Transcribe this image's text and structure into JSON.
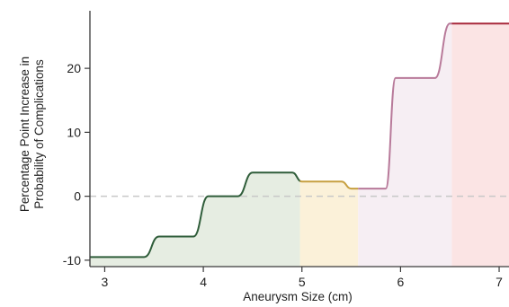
{
  "chart_data": {
    "type": "line",
    "title": "",
    "xlabel": "Aneurysm Size (cm)",
    "ylabel_lines": [
      "Percentage Point Increase in",
      "Probability of Complications"
    ],
    "xlim": [
      2.85,
      7.1
    ],
    "ylim": [
      -11,
      29
    ],
    "xticks": [
      3,
      4,
      5,
      6,
      7
    ],
    "yticks": [
      -10,
      0,
      10,
      20
    ],
    "reference_line": {
      "y": 0,
      "style": "dashed",
      "color": "#c8c8c8"
    },
    "grid": false,
    "legend": "none",
    "series": [
      {
        "x": [
          2.85,
          3.4,
          3.55,
          3.9,
          4.05,
          4.35,
          4.5,
          4.9,
          5.0,
          5.4,
          5.5,
          5.85,
          5.95,
          6.35,
          6.5,
          7.1
        ],
        "y": [
          -9.5,
          -9.5,
          -6.3,
          -6.3,
          0.0,
          0.0,
          3.7,
          3.7,
          2.3,
          2.3,
          1.2,
          1.2,
          18.5,
          18.5,
          27.0,
          27.0
        ]
      }
    ],
    "bands": [
      {
        "x_from": 2.85,
        "x_to": 4.98,
        "fill": "#e6ede2",
        "line": "#2f5d3a"
      },
      {
        "x_from": 4.98,
        "x_to": 5.57,
        "fill": "#fbf1d9",
        "line": "#c7a040"
      },
      {
        "x_from": 5.57,
        "x_to": 6.52,
        "fill": "#f6eef3",
        "line": "#b87a9a"
      },
      {
        "x_from": 6.52,
        "x_to": 7.1,
        "fill": "#fbe4e4",
        "line": "#a8283a"
      }
    ]
  }
}
